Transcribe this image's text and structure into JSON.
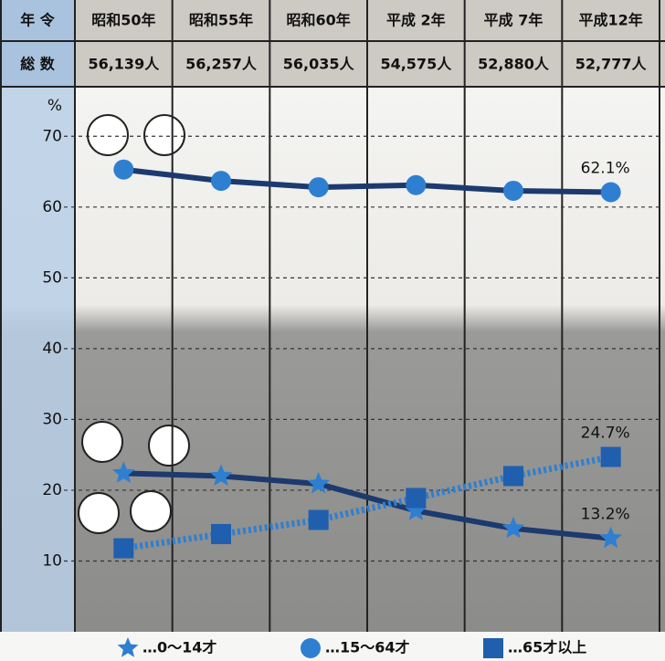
{
  "chart_data": {
    "type": "line",
    "header_label": "年 令",
    "totals_label": "総 数",
    "categories": [
      "昭和50年",
      "昭和55年",
      "昭和60年",
      "平成 2年",
      "平成 7年",
      "平成12年"
    ],
    "totals": [
      "56,139人",
      "56,257人",
      "56,035人",
      "54,575人",
      "52,880人",
      "52,777人"
    ],
    "y_unit": "%",
    "ylim": [
      0,
      77
    ],
    "yticks": [
      10,
      20,
      30,
      40,
      50,
      60,
      70
    ],
    "grid": true,
    "series": [
      {
        "name": "…0〜14才",
        "color": "#2f7fd0",
        "line_color": "#1c3a6e",
        "marker": "star",
        "line_style": "solid",
        "values": [
          22.4,
          22.0,
          20.9,
          17.1,
          14.6,
          13.2
        ],
        "value_labels": [
          null,
          null,
          null,
          null,
          null,
          "13.2%"
        ]
      },
      {
        "name": "…15〜64才",
        "color": "#2f7fd0",
        "line_color": "#1c3a6e",
        "marker": "circle",
        "line_style": "solid",
        "values": [
          65.3,
          63.7,
          62.8,
          63.1,
          62.3,
          62.1
        ],
        "value_labels": [
          null,
          null,
          null,
          null,
          null,
          "62.1%"
        ]
      },
      {
        "name": "…65才以上",
        "color": "#1f5fae",
        "line_color": "#2f7fd0",
        "marker": "square",
        "line_style": "dotted",
        "values": [
          11.8,
          13.8,
          15.8,
          18.9,
          22.0,
          24.7
        ],
        "value_labels": [
          null,
          null,
          null,
          null,
          null,
          "24.7%"
        ]
      }
    ]
  }
}
